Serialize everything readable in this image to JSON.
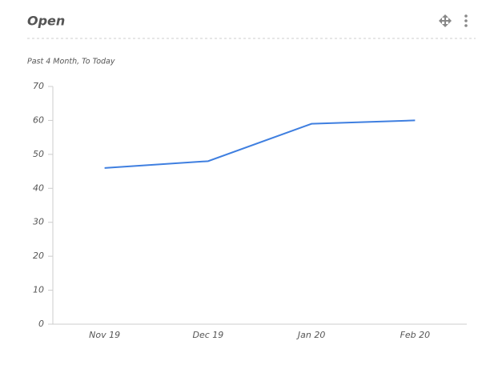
{
  "chart_data": {
    "type": "line",
    "title": "Open",
    "subtitle": "Past 4 Month, To Today",
    "categories": [
      "Nov 19",
      "Dec 19",
      "Jan 20",
      "Feb 20"
    ],
    "series": [
      {
        "name": "Open",
        "color": "#3f7fe0",
        "values": [
          46,
          48,
          59,
          60
        ]
      }
    ],
    "ylim": [
      0,
      70
    ],
    "yticks": [
      0,
      10,
      20,
      30,
      40,
      50,
      60,
      70
    ],
    "grid": false
  }
}
